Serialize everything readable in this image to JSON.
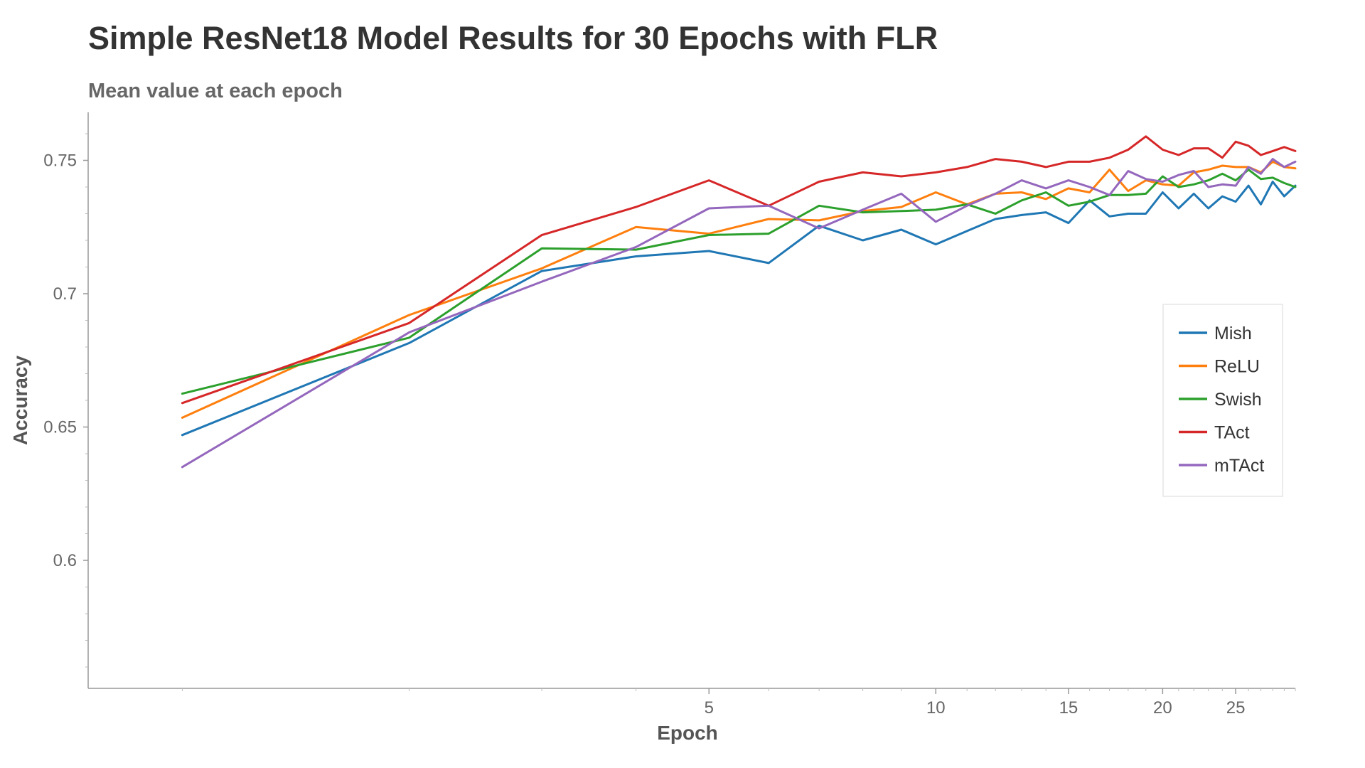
{
  "chart_data": {
    "type": "line",
    "title": "Simple ResNet18 Model Results for 30 Epochs with FLR",
    "subtitle": "Mean value at each epoch",
    "xlabel": "Epoch",
    "ylabel": "Accuracy",
    "xscale": "log",
    "xlim": [
      0.75,
      30
    ],
    "ylim": [
      0.552,
      0.768
    ],
    "xticks": [
      5,
      10,
      15,
      20,
      25
    ],
    "xtick_labels": [
      "5",
      "10",
      "15",
      "20",
      "25"
    ],
    "yticks": [
      0.6,
      0.65,
      0.7,
      0.75
    ],
    "ytick_labels": [
      "0.6",
      "0.65",
      "0.7",
      "0.75"
    ],
    "grid": false,
    "legend_position": "right",
    "x": [
      1,
      2,
      3,
      4,
      5,
      6,
      7,
      8,
      9,
      10,
      11,
      12,
      13,
      14,
      15,
      16,
      17,
      18,
      19,
      20,
      21,
      22,
      23,
      24,
      25,
      26,
      27,
      28,
      29,
      30
    ],
    "series": [
      {
        "name": "Mish",
        "color": "#1f77b4",
        "values": [
          0.647,
          0.6815,
          0.7085,
          0.714,
          0.716,
          0.7115,
          0.7255,
          0.72,
          0.724,
          0.7185,
          0.7235,
          0.728,
          0.7295,
          0.7305,
          0.7265,
          0.735,
          0.729,
          0.73,
          0.73,
          0.738,
          0.732,
          0.7375,
          0.732,
          0.7365,
          0.7345,
          0.7405,
          0.7335,
          0.742,
          0.7365,
          0.7405
        ]
      },
      {
        "name": "ReLU",
        "color": "#ff7f0e",
        "values": [
          0.6535,
          0.692,
          0.7095,
          0.725,
          0.7225,
          0.728,
          0.7275,
          0.731,
          0.7325,
          0.738,
          0.7335,
          0.7375,
          0.738,
          0.7355,
          0.7395,
          0.738,
          0.7465,
          0.7385,
          0.7425,
          0.741,
          0.7405,
          0.7455,
          0.7465,
          0.748,
          0.7475,
          0.7475,
          0.7455,
          0.7495,
          0.7475,
          0.747
        ]
      },
      {
        "name": "Swish",
        "color": "#2ca02c",
        "values": [
          0.6625,
          0.6835,
          0.717,
          0.7165,
          0.722,
          0.7225,
          0.733,
          0.7305,
          0.731,
          0.7315,
          0.7335,
          0.73,
          0.735,
          0.738,
          0.733,
          0.7345,
          0.737,
          0.737,
          0.7375,
          0.744,
          0.74,
          0.741,
          0.7425,
          0.745,
          0.7425,
          0.7465,
          0.743,
          0.7435,
          0.7415,
          0.74
        ]
      },
      {
        "name": "TAct",
        "color": "#d62728",
        "values": [
          0.659,
          0.689,
          0.722,
          0.7325,
          0.7425,
          0.733,
          0.742,
          0.7455,
          0.744,
          0.7455,
          0.7475,
          0.7505,
          0.7495,
          0.7475,
          0.7495,
          0.7495,
          0.751,
          0.754,
          0.759,
          0.754,
          0.752,
          0.7545,
          0.7545,
          0.751,
          0.757,
          0.7555,
          0.752,
          0.7535,
          0.755,
          0.7535
        ]
      },
      {
        "name": "mTAct",
        "color": "#9467bd",
        "values": [
          0.635,
          0.6855,
          0.7045,
          0.7175,
          0.732,
          0.733,
          0.7245,
          0.7315,
          0.7375,
          0.727,
          0.733,
          0.7375,
          0.7425,
          0.7395,
          0.7425,
          0.74,
          0.737,
          0.746,
          0.743,
          0.742,
          0.7445,
          0.746,
          0.74,
          0.741,
          0.7405,
          0.7475,
          0.745,
          0.7505,
          0.7475,
          0.7495
        ]
      }
    ]
  }
}
